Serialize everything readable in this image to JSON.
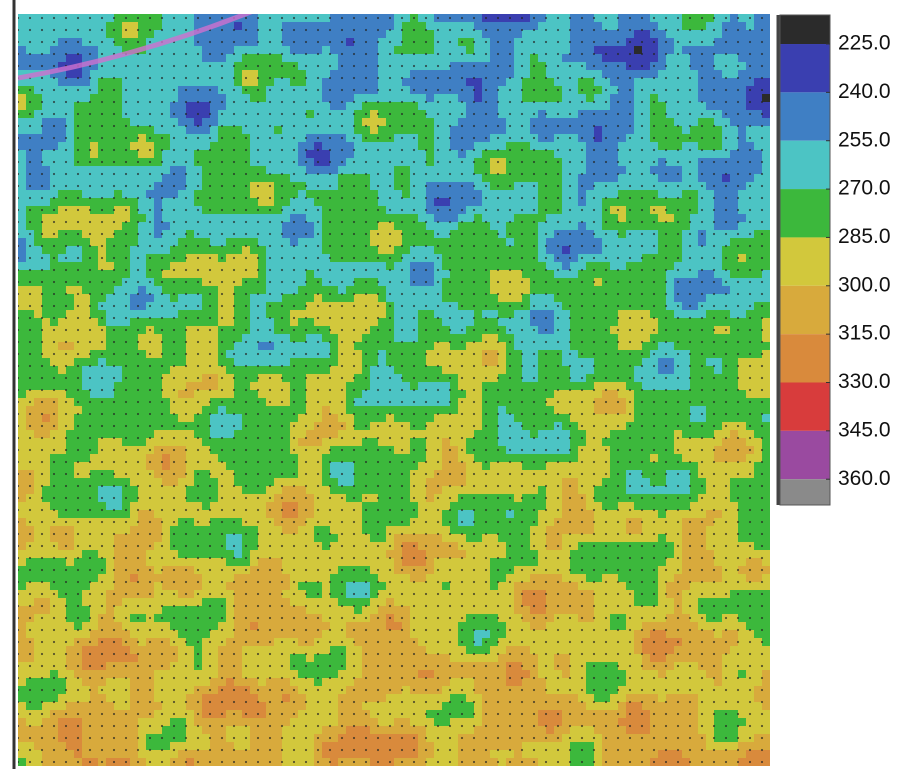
{
  "colorbar": {
    "ticks": [
      {
        "value": 225,
        "label": "225.0"
      },
      {
        "value": 240,
        "label": "240.0"
      },
      {
        "value": 255,
        "label": "255.0"
      },
      {
        "value": 270,
        "label": "270.0"
      },
      {
        "value": 285,
        "label": "285.0"
      },
      {
        "value": 300,
        "label": "300.0"
      },
      {
        "value": 315,
        "label": "315.0"
      },
      {
        "value": 330,
        "label": "330.0"
      },
      {
        "value": 345,
        "label": "345.0"
      },
      {
        "value": 360,
        "label": "360.0"
      }
    ],
    "lim": [
      216,
      368
    ],
    "colors": [
      "#2b2b2b",
      "#3a3fb0",
      "#3f7fc4",
      "#4cc4c4",
      "#3cb83c",
      "#d2c83c",
      "#d8aa3c",
      "#d98a3c",
      "#d83c3c",
      "#9a4aa0",
      "#8a8a8a"
    ]
  }
}
